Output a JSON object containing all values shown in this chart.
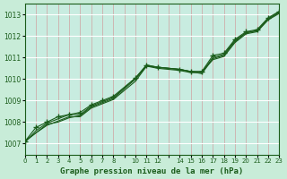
{
  "title": "Graphe pression niveau de la mer (hPa)",
  "bg_color": "#c8ecd8",
  "plot_bg_color": "#c8ece0",
  "line_color": "#1a5c1a",
  "grid_color_v": "#d0a0a0",
  "grid_color_h": "#ffffff",
  "xlim": [
    0,
    23
  ],
  "ylim": [
    1006.5,
    1013.5
  ],
  "yticks": [
    1007,
    1008,
    1009,
    1010,
    1011,
    1012,
    1013
  ],
  "xtick_positions": [
    0,
    1,
    2,
    3,
    4,
    5,
    6,
    7,
    8,
    9,
    10,
    11,
    12,
    13,
    14,
    15,
    16,
    17,
    18,
    19,
    20,
    21,
    22,
    23
  ],
  "xtick_labels": [
    "0",
    "1",
    "2",
    "3",
    "4",
    "5",
    "6",
    "7",
    "8",
    "",
    "10",
    "11",
    "12",
    "",
    "14",
    "15",
    "16",
    "17",
    "18",
    "19",
    "20",
    "21",
    "22",
    "23"
  ],
  "hours": [
    0,
    1,
    2,
    3,
    4,
    5,
    6,
    7,
    8,
    10,
    11,
    12,
    14,
    15,
    16,
    17,
    18,
    19,
    20,
    21,
    22,
    23
  ],
  "line1": [
    1007.1,
    1007.5,
    1007.9,
    1008.0,
    1008.2,
    1008.3,
    1008.7,
    1008.9,
    1009.1,
    1010.0,
    1010.6,
    1010.5,
    1010.4,
    1010.3,
    1010.3,
    1011.0,
    1011.15,
    1011.8,
    1012.15,
    1012.25,
    1012.8,
    1013.1
  ],
  "line2": [
    1007.1,
    1007.5,
    1007.85,
    1008.05,
    1008.25,
    1008.25,
    1008.65,
    1008.85,
    1009.05,
    1009.9,
    1010.6,
    1010.55,
    1010.45,
    1010.35,
    1010.35,
    1010.9,
    1011.05,
    1011.7,
    1012.1,
    1012.2,
    1012.75,
    1013.05
  ],
  "line3": [
    1007.05,
    1007.6,
    1007.95,
    1008.15,
    1008.35,
    1008.35,
    1008.75,
    1008.95,
    1009.15,
    1010.05,
    1010.65,
    1010.55,
    1010.45,
    1010.35,
    1010.25,
    1010.95,
    1011.1,
    1011.75,
    1012.15,
    1012.25,
    1012.8,
    1013.1
  ],
  "scatter_x": [
    0,
    1,
    2,
    3,
    4,
    5,
    6,
    7,
    8,
    10,
    11,
    12,
    14,
    15,
    16,
    17,
    18,
    19,
    20,
    21,
    22,
    23
  ],
  "scatter_y": [
    1007.1,
    1007.75,
    1008.0,
    1008.25,
    1008.35,
    1008.45,
    1008.8,
    1009.0,
    1009.2,
    1010.05,
    1010.65,
    1010.55,
    1010.45,
    1010.35,
    1010.35,
    1011.1,
    1011.2,
    1011.85,
    1012.2,
    1012.3,
    1012.85,
    1013.15
  ]
}
